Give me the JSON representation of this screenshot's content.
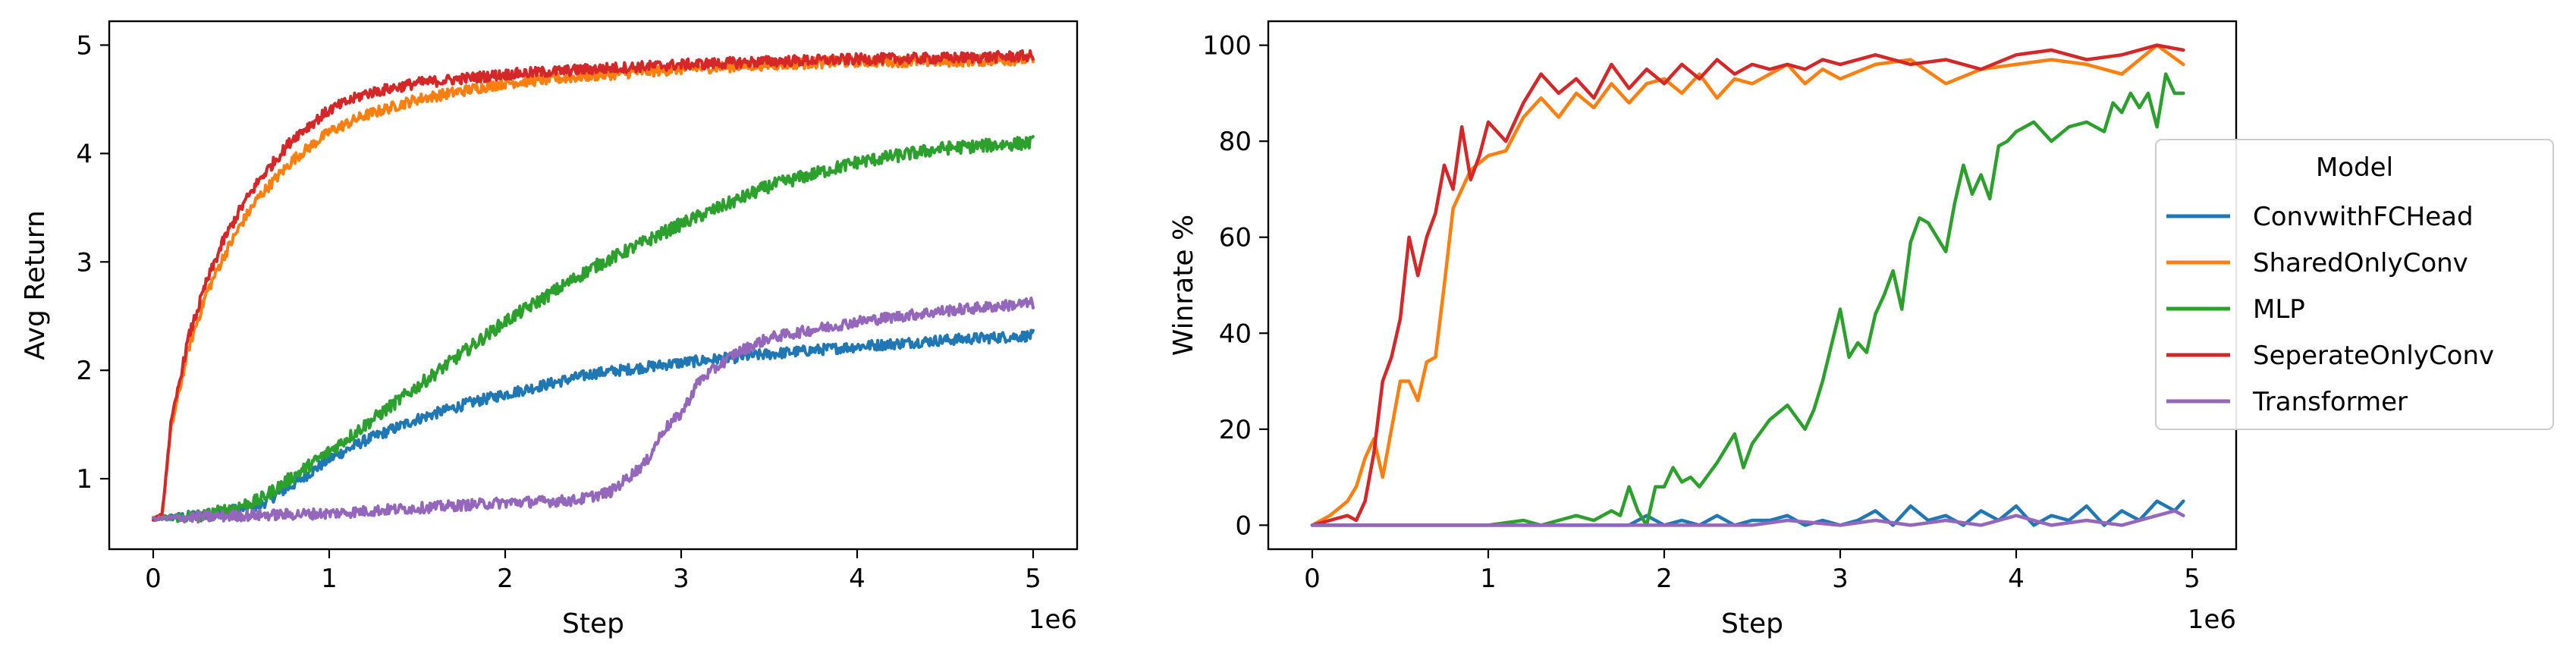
{
  "chart_data": [
    {
      "type": "line",
      "xlabel": "Step",
      "ylabel": "Avg Return",
      "x_offset_label": "1e6",
      "xlim": [
        -250000,
        5250000
      ],
      "ylim": [
        0.35,
        5.22
      ],
      "xticks": [
        0,
        1000000,
        2000000,
        3000000,
        4000000,
        5000000
      ],
      "xtick_labels": [
        "0",
        "1",
        "2",
        "3",
        "4",
        "5"
      ],
      "yticks": [
        1,
        2,
        3,
        4,
        5
      ],
      "ytick_labels": [
        "1",
        "2",
        "3",
        "4",
        "5"
      ],
      "grid": false,
      "noisy": true,
      "series": [
        {
          "name": "ConvwithFCHead",
          "color": "#1f77b4",
          "noise": 0.05,
          "x": [
            0,
            300000,
            600000,
            800000,
            1000000,
            1200000,
            1500000,
            1800000,
            2000000,
            2500000,
            3000000,
            3500000,
            4000000,
            4500000,
            5000000
          ],
          "y": [
            0.63,
            0.67,
            0.75,
            0.95,
            1.18,
            1.35,
            1.55,
            1.7,
            1.78,
            1.97,
            2.07,
            2.15,
            2.22,
            2.28,
            2.32
          ]
        },
        {
          "name": "SharedOnlyConv",
          "color": "#ff7f0e",
          "noise": 0.05,
          "x": [
            0,
            50000,
            100000,
            200000,
            300000,
            400000,
            500000,
            600000,
            800000,
            1000000,
            1200000,
            1500000,
            2000000,
            2500000,
            3000000,
            3500000,
            4000000,
            4500000,
            5000000
          ],
          "y": [
            0.63,
            0.66,
            1.45,
            2.2,
            2.7,
            3.05,
            3.35,
            3.6,
            3.95,
            4.2,
            4.35,
            4.5,
            4.65,
            4.72,
            4.78,
            4.82,
            4.85,
            4.85,
            4.87
          ]
        },
        {
          "name": "MLP",
          "color": "#2ca02c",
          "noise": 0.06,
          "x": [
            0,
            300000,
            600000,
            1000000,
            1500000,
            2000000,
            2500000,
            3000000,
            3500000,
            4000000,
            4500000,
            5000000
          ],
          "y": [
            0.63,
            0.66,
            0.8,
            1.25,
            1.85,
            2.45,
            2.95,
            3.35,
            3.7,
            3.92,
            4.05,
            4.1
          ]
        },
        {
          "name": "SeperateOnlyConv",
          "color": "#d62728",
          "noise": 0.05,
          "x": [
            0,
            50000,
            100000,
            200000,
            300000,
            400000,
            500000,
            600000,
            800000,
            1000000,
            1200000,
            1500000,
            2000000,
            2500000,
            3000000,
            3500000,
            4000000,
            4500000,
            5000000
          ],
          "y": [
            0.63,
            0.66,
            1.5,
            2.3,
            2.8,
            3.2,
            3.5,
            3.75,
            4.15,
            4.4,
            4.55,
            4.65,
            4.73,
            4.78,
            4.82,
            4.85,
            4.87,
            4.88,
            4.9
          ]
        },
        {
          "name": "Transformer",
          "color": "#9467bd",
          "noise": 0.05,
          "x": [
            0,
            500000,
            1000000,
            1500000,
            2000000,
            2400000,
            2600000,
            2800000,
            2900000,
            3000000,
            3100000,
            3300000,
            3500000,
            4000000,
            4500000,
            5000000
          ],
          "y": [
            0.63,
            0.66,
            0.68,
            0.73,
            0.78,
            0.8,
            0.88,
            1.15,
            1.45,
            1.6,
            1.9,
            2.15,
            2.3,
            2.45,
            2.55,
            2.62
          ]
        }
      ]
    },
    {
      "type": "line",
      "xlabel": "Step",
      "ylabel": "Winrate %",
      "x_offset_label": "1e6",
      "xlim": [
        -250000,
        5250000
      ],
      "ylim": [
        -5,
        105
      ],
      "xticks": [
        0,
        1000000,
        2000000,
        3000000,
        4000000,
        5000000
      ],
      "xtick_labels": [
        "0",
        "1",
        "2",
        "3",
        "4",
        "5"
      ],
      "yticks": [
        0,
        20,
        40,
        60,
        80,
        100
      ],
      "ytick_labels": [
        "0",
        "20",
        "40",
        "60",
        "80",
        "100"
      ],
      "grid": false,
      "noisy": false,
      "legend": {
        "title": "Model",
        "position": "center-right outside"
      },
      "series": [
        {
          "name": "ConvwithFCHead",
          "color": "#1f77b4",
          "x": [
            0,
            1000000,
            1800000,
            1900000,
            2000000,
            2100000,
            2200000,
            2300000,
            2400000,
            2500000,
            2600000,
            2700000,
            2800000,
            2900000,
            3000000,
            3100000,
            3200000,
            3300000,
            3400000,
            3500000,
            3600000,
            3700000,
            3800000,
            3900000,
            4000000,
            4100000,
            4200000,
            4300000,
            4400000,
            4500000,
            4600000,
            4700000,
            4800000,
            4900000,
            4950000
          ],
          "y": [
            0,
            0,
            0,
            2,
            0,
            1,
            0,
            2,
            0,
            1,
            1,
            2,
            0,
            1,
            0,
            1,
            3,
            0,
            4,
            1,
            2,
            0,
            3,
            1,
            4,
            0,
            2,
            1,
            4,
            0,
            3,
            1,
            5,
            3,
            5
          ]
        },
        {
          "name": "SharedOnlyConv",
          "color": "#ff7f0e",
          "x": [
            0,
            100000,
            200000,
            250000,
            300000,
            350000,
            400000,
            450000,
            500000,
            550000,
            600000,
            650000,
            700000,
            750000,
            800000,
            900000,
            1000000,
            1100000,
            1200000,
            1300000,
            1400000,
            1500000,
            1600000,
            1700000,
            1800000,
            1900000,
            2000000,
            2100000,
            2200000,
            2300000,
            2400000,
            2500000,
            2600000,
            2700000,
            2800000,
            2900000,
            3000000,
            3200000,
            3400000,
            3600000,
            3800000,
            4000000,
            4200000,
            4400000,
            4600000,
            4800000,
            4950000
          ],
          "y": [
            0,
            2,
            5,
            8,
            14,
            18,
            10,
            20,
            30,
            30,
            26,
            34,
            35,
            50,
            66,
            74,
            77,
            78,
            85,
            89,
            85,
            90,
            87,
            92,
            88,
            92,
            93,
            90,
            94,
            89,
            93,
            92,
            94,
            96,
            92,
            95,
            93,
            96,
            97,
            92,
            95,
            96,
            97,
            96,
            94,
            100,
            96
          ]
        },
        {
          "name": "MLP",
          "color": "#2ca02c",
          "x": [
            0,
            1000000,
            1200000,
            1300000,
            1400000,
            1500000,
            1600000,
            1700000,
            1750000,
            1800000,
            1850000,
            1900000,
            1950000,
            2000000,
            2050000,
            2100000,
            2150000,
            2200000,
            2300000,
            2350000,
            2400000,
            2450000,
            2500000,
            2600000,
            2700000,
            2800000,
            2850000,
            2900000,
            3000000,
            3050000,
            3100000,
            3150000,
            3200000,
            3250000,
            3300000,
            3350000,
            3400000,
            3450000,
            3500000,
            3550000,
            3600000,
            3650000,
            3700000,
            3750000,
            3800000,
            3850000,
            3900000,
            3950000,
            4000000,
            4100000,
            4200000,
            4300000,
            4400000,
            4500000,
            4550000,
            4600000,
            4650000,
            4700000,
            4750000,
            4800000,
            4850000,
            4900000,
            4950000
          ],
          "y": [
            0,
            0,
            1,
            0,
            1,
            2,
            1,
            3,
            2,
            8,
            3,
            0,
            8,
            8,
            12,
            9,
            10,
            8,
            13,
            16,
            19,
            12,
            17,
            22,
            25,
            20,
            24,
            30,
            45,
            35,
            38,
            36,
            44,
            48,
            53,
            45,
            59,
            64,
            63,
            60,
            57,
            67,
            75,
            69,
            73,
            68,
            79,
            80,
            82,
            84,
            80,
            83,
            84,
            82,
            88,
            86,
            90,
            87,
            90,
            83,
            94,
            90,
            90
          ]
        },
        {
          "name": "SeperateOnlyConv",
          "color": "#d62728",
          "x": [
            0,
            100000,
            200000,
            250000,
            300000,
            350000,
            400000,
            450000,
            500000,
            550000,
            600000,
            650000,
            700000,
            750000,
            800000,
            850000,
            900000,
            950000,
            1000000,
            1100000,
            1200000,
            1300000,
            1400000,
            1500000,
            1600000,
            1700000,
            1800000,
            1900000,
            2000000,
            2100000,
            2200000,
            2300000,
            2400000,
            2500000,
            2600000,
            2700000,
            2800000,
            2900000,
            3000000,
            3200000,
            3400000,
            3600000,
            3800000,
            4000000,
            4200000,
            4400000,
            4600000,
            4800000,
            4950000
          ],
          "y": [
            0,
            1,
            2,
            1,
            5,
            15,
            30,
            35,
            43,
            60,
            52,
            60,
            65,
            75,
            70,
            83,
            72,
            77,
            84,
            80,
            88,
            94,
            90,
            93,
            89,
            96,
            91,
            95,
            92,
            96,
            93,
            97,
            94,
            96,
            95,
            96,
            95,
            97,
            96,
            98,
            96,
            97,
            95,
            98,
            99,
            97,
            98,
            100,
            99
          ]
        },
        {
          "name": "Transformer",
          "color": "#9467bd",
          "x": [
            0,
            2000000,
            2500000,
            2700000,
            3000000,
            3200000,
            3400000,
            3600000,
            3800000,
            4000000,
            4200000,
            4400000,
            4600000,
            4800000,
            4900000,
            4950000
          ],
          "y": [
            0,
            0,
            0,
            1,
            0,
            1,
            0,
            1,
            0,
            2,
            0,
            1,
            0,
            2,
            3,
            2
          ]
        }
      ]
    }
  ]
}
